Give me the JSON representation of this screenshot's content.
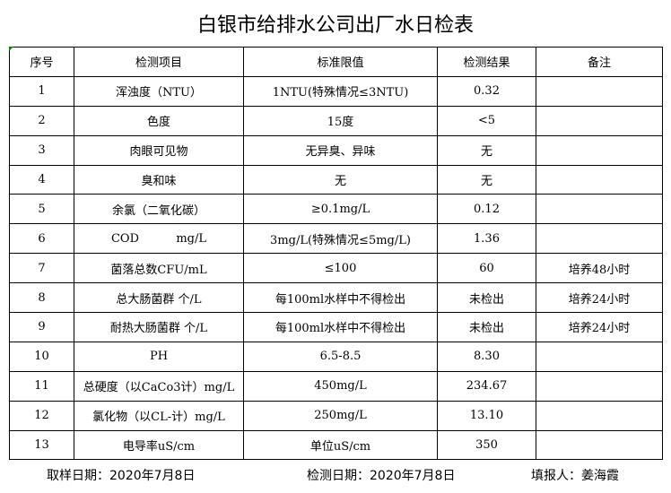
{
  "title": "白银市给排水公司出厂水日检表",
  "headers": [
    "序号",
    "检测项目",
    "标准限值",
    "检测结果",
    "备注"
  ],
  "rows": [
    [
      "1",
      "浑浊度（NTU）",
      "1NTU(特殊情况≤3NTU)",
      "0.32",
      ""
    ],
    [
      "2",
      "色度",
      "15度",
      "<5",
      ""
    ],
    [
      "3",
      "肉眼可见物",
      "无异臭、异味",
      "无",
      ""
    ],
    [
      "4",
      "臭和味",
      "无",
      "无",
      ""
    ],
    [
      "5",
      "余氯（二氧化碳）",
      "≥0.1mg/L",
      "0.12",
      ""
    ],
    [
      "6",
      "COD          mg/L",
      "3mg/L(特殊情况≤5mg/L)",
      "1.36",
      ""
    ],
    [
      "7",
      "菌落总数CFU/mL",
      "≤100",
      "60",
      "培养48小时"
    ],
    [
      "8",
      "总大肠菌群 个/L",
      "每100ml水样中不得检出",
      "未检出",
      "培养24小时"
    ],
    [
      "9",
      "耐热大肠菌群 个/L",
      "每100ml水样中不得检出",
      "未检出",
      "培养24小时"
    ],
    [
      "10",
      "PH",
      "6.5-8.5",
      "8.30",
      ""
    ],
    [
      "11",
      "总硬度（以CaCo3计）mg/L",
      "450mg/L",
      "234.67",
      ""
    ],
    [
      "12",
      "氯化物（以CL-计）mg/L",
      "250mg/L",
      "13.10",
      ""
    ],
    [
      "13",
      "电导率uS/cm",
      "单位uS/cm",
      "350",
      ""
    ]
  ],
  "footer": {
    "sample_date": "取样日期：2020年7月8日",
    "test_date": "检测日期：2020年7月8日",
    "reporter": "填报人：姜海霞"
  }
}
